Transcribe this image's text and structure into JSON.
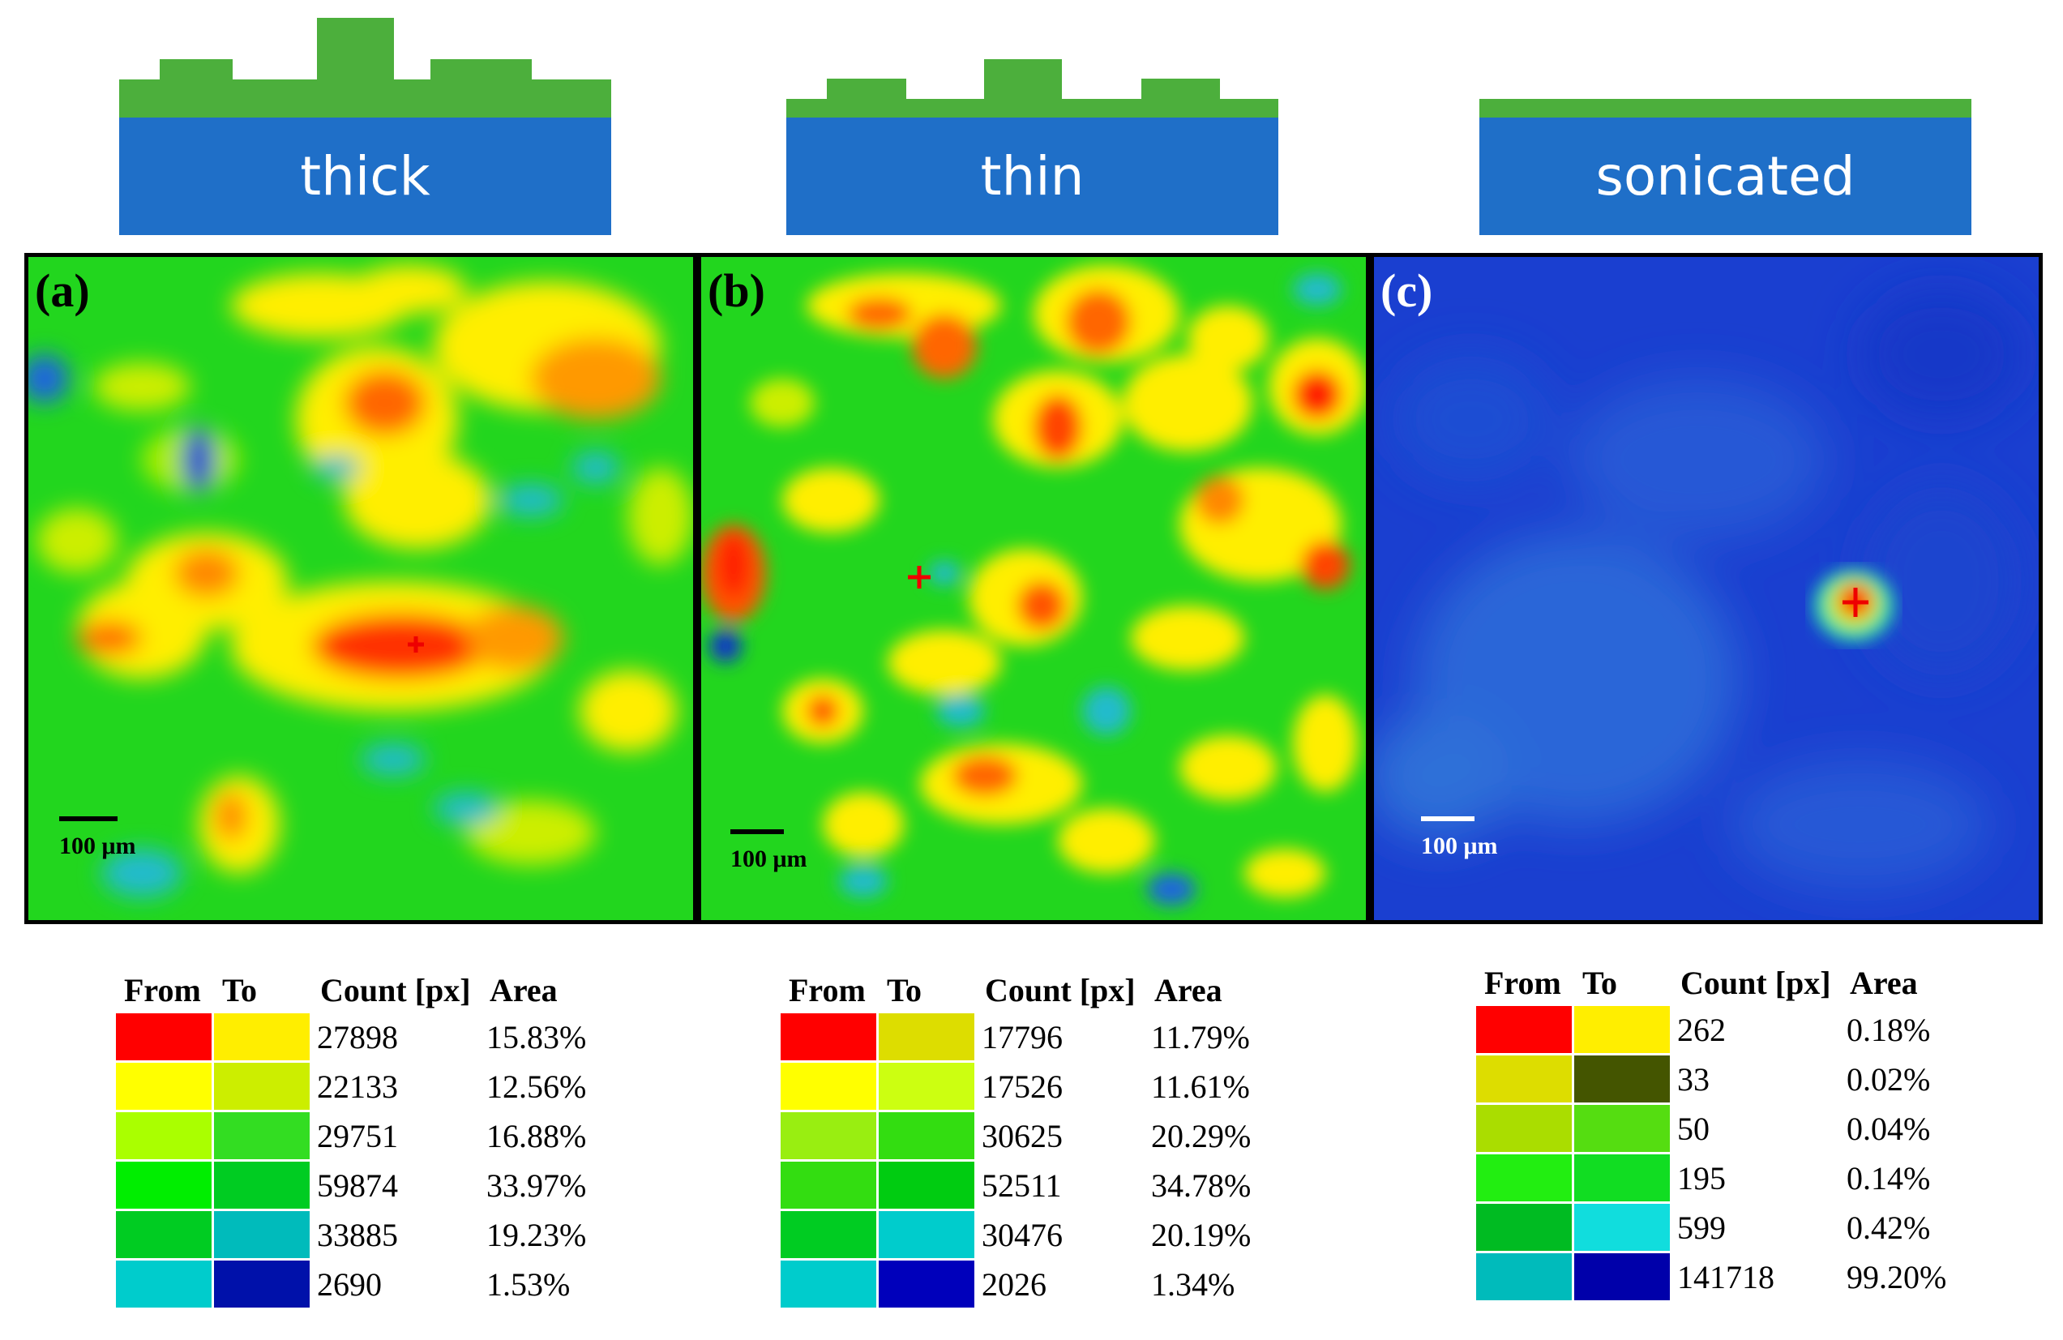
{
  "panels": [
    {
      "letter": "(a)",
      "sample": "thick",
      "scale_label": "100 μm",
      "legend": {
        "headers": [
          "From",
          "To",
          "Count [px]",
          "Area"
        ],
        "rows": [
          {
            "from": "#ff0000",
            "to": "#ffee00",
            "count": "27898",
            "area": "15.83%"
          },
          {
            "from": "#ffff00",
            "to": "#ccee00",
            "count": "22133",
            "area": "12.56%"
          },
          {
            "from": "#aaff00",
            "to": "#33dd22",
            "count": "29751",
            "area": "16.88%"
          },
          {
            "from": "#00ee00",
            "to": "#00cc22",
            "count": "59874",
            "area": "33.97%"
          },
          {
            "from": "#00cc22",
            "to": "#00bbbb",
            "count": "33885",
            "area": "19.23%"
          },
          {
            "from": "#00cccc",
            "to": "#0011aa",
            "count": "2690",
            "area": "1.53%"
          }
        ]
      }
    },
    {
      "letter": "(b)",
      "sample": "thin",
      "scale_label": "100 μm",
      "legend": {
        "headers": [
          "From",
          "To",
          "Count [px]",
          "Area"
        ],
        "rows": [
          {
            "from": "#ff0000",
            "to": "#dddd00",
            "count": "17796",
            "area": "11.79%"
          },
          {
            "from": "#ffff00",
            "to": "#ccff11",
            "count": "17526",
            "area": "11.61%"
          },
          {
            "from": "#99ee11",
            "to": "#33dd11",
            "count": "30625",
            "area": "20.29%"
          },
          {
            "from": "#33dd11",
            "to": "#00cc11",
            "count": "52511",
            "area": "34.78%"
          },
          {
            "from": "#00cc22",
            "to": "#00cccc",
            "count": "30476",
            "area": "20.19%"
          },
          {
            "from": "#00cccc",
            "to": "#0000bb",
            "count": "2026",
            "area": "1.34%"
          }
        ]
      }
    },
    {
      "letter": "(c)",
      "sample": "sonicated",
      "scale_label": "100 μm",
      "legend": {
        "headers": [
          "From",
          "To",
          "Count [px]",
          "Area"
        ],
        "rows": [
          {
            "from": "#ff0000",
            "to": "#ffee00",
            "count": "262",
            "area": "0.18%"
          },
          {
            "from": "#dddd00",
            "to": "#445500",
            "count": "33",
            "area": "0.02%"
          },
          {
            "from": "#aadd00",
            "to": "#55dd11",
            "count": "50",
            "area": "0.04%"
          },
          {
            "from": "#22ee11",
            "to": "#11dd22",
            "count": "195",
            "area": "0.14%"
          },
          {
            "from": "#00bb22",
            "to": "#11dddd",
            "count": "599",
            "area": "0.42%"
          },
          {
            "from": "#00bbbb",
            "to": "#0000aa",
            "count": "141718",
            "area": "99.20%"
          }
        ]
      }
    }
  ],
  "colors": {
    "substrate": "#1f6fc8",
    "film": "#4caf3c",
    "map_green": "#22d61e",
    "map_blue": "#1a3fd0"
  }
}
